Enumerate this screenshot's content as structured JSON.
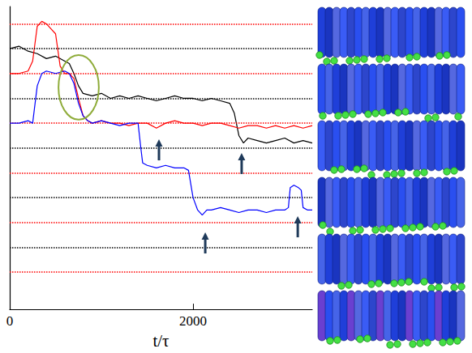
{
  "chart_data": {
    "type": "line",
    "x_label": "t/τ",
    "xlim": [
      0,
      3300
    ],
    "xticks": [
      0,
      2000
    ],
    "ylim": [
      -1.5,
      10.7
    ],
    "yticks": [],
    "tick_labels": "x",
    "grid": false,
    "series": [
      {
        "color": "#000000",
        "line_style": "solid",
        "x": [
          0,
          100,
          200,
          300,
          400,
          500,
          600,
          650,
          700,
          750,
          800,
          900,
          1000,
          1100,
          1200,
          1300,
          1400,
          1500,
          1600,
          1700,
          1800,
          1900,
          2000,
          2100,
          2200,
          2300,
          2400,
          2450,
          2500,
          2550,
          2600,
          2700,
          2800,
          2900,
          3000,
          3100,
          3200,
          3300
        ],
        "values": [
          9.0,
          9.1,
          8.9,
          8.8,
          8.6,
          8.7,
          8.5,
          8.4,
          8.0,
          7.5,
          7.2,
          7.1,
          7.2,
          7.0,
          7.1,
          7.0,
          7.1,
          7.0,
          6.9,
          7.0,
          7.1,
          7.0,
          7.0,
          6.9,
          7.0,
          6.9,
          6.8,
          6.4,
          5.5,
          5.2,
          5.4,
          5.3,
          5.2,
          5.3,
          5.4,
          5.2,
          5.3,
          5.2
        ]
      },
      {
        "color": "#ff0000",
        "line_style": "solid",
        "x": [
          0,
          100,
          200,
          250,
          300,
          350,
          400,
          450,
          500,
          550,
          600,
          650,
          700,
          750,
          800,
          850,
          900,
          1000,
          1100,
          1200,
          1300,
          1400,
          1500,
          1600,
          1700,
          1800,
          1900,
          2000,
          2100,
          2200,
          2300,
          2400,
          2500,
          2600,
          2700,
          2800,
          2900,
          3000,
          3100,
          3200,
          3300
        ],
        "values": [
          8.0,
          8.0,
          8.1,
          8.5,
          9.9,
          10.1,
          10.0,
          9.8,
          9.6,
          8.3,
          8.0,
          8.0,
          7.8,
          7.0,
          6.3,
          6.1,
          6.0,
          6.1,
          6.0,
          6.0,
          5.9,
          6.0,
          6.0,
          5.8,
          6.0,
          6.1,
          6.0,
          6.0,
          5.9,
          6.0,
          6.0,
          5.9,
          5.8,
          5.9,
          5.9,
          5.8,
          5.9,
          5.8,
          5.9,
          5.8,
          5.9
        ]
      },
      {
        "color": "#0000ff",
        "line_style": "solid",
        "x": [
          0,
          100,
          200,
          250,
          300,
          350,
          400,
          500,
          600,
          650,
          700,
          750,
          800,
          850,
          900,
          1000,
          1100,
          1200,
          1300,
          1400,
          1430,
          1450,
          1500,
          1600,
          1700,
          1800,
          1900,
          1950,
          2000,
          2050,
          2100,
          2150,
          2200,
          2300,
          2400,
          2500,
          2600,
          2700,
          2800,
          2900,
          3000,
          3040,
          3060,
          3100,
          3150,
          3180,
          3200,
          3250,
          3300
        ],
        "values": [
          6.0,
          6.0,
          6.1,
          6.0,
          7.5,
          8.0,
          8.1,
          8.0,
          8.1,
          8.0,
          7.6,
          6.8,
          6.3,
          6.1,
          6.0,
          6.1,
          6.0,
          5.9,
          6.0,
          6.0,
          5.0,
          4.4,
          4.3,
          4.2,
          4.3,
          4.2,
          4.2,
          4.1,
          3.0,
          2.5,
          2.3,
          2.5,
          2.5,
          2.6,
          2.5,
          2.4,
          2.5,
          2.5,
          2.4,
          2.5,
          2.5,
          2.6,
          3.4,
          3.5,
          3.4,
          3.3,
          2.6,
          2.5,
          2.5
        ]
      }
    ],
    "reference_lines": [
      {
        "y": 0,
        "color": "#ff0000",
        "line_style": "dotted"
      },
      {
        "y": 1,
        "color": "#000000",
        "line_style": "dotted"
      },
      {
        "y": 2,
        "color": "#ff0000",
        "line_style": "dotted"
      },
      {
        "y": 3,
        "color": "#000000",
        "line_style": "dotted"
      },
      {
        "y": 4,
        "color": "#ff0000",
        "line_style": "dotted"
      },
      {
        "y": 5,
        "color": "#000000",
        "line_style": "dotted"
      },
      {
        "y": 6,
        "color": "#ff0000",
        "line_style": "dotted"
      },
      {
        "y": 7,
        "color": "#000000",
        "line_style": "dotted"
      },
      {
        "y": 8,
        "color": "#ff0000",
        "line_style": "dotted"
      },
      {
        "y": 9,
        "color": "#000000",
        "line_style": "dotted"
      },
      {
        "y": 10,
        "color": "#ff0000",
        "line_style": "dotted"
      }
    ],
    "arrows": {
      "color": "#1f3a5a",
      "x": [
        1628,
        2530,
        2133,
        3142
      ],
      "y": [
        5.35,
        4.8,
        1.6,
        2.25
      ]
    },
    "ellipse": {
      "color": "#8fac3a",
      "x": 752,
      "y": 7.44,
      "width": 440,
      "height": 2.6
    }
  }
}
